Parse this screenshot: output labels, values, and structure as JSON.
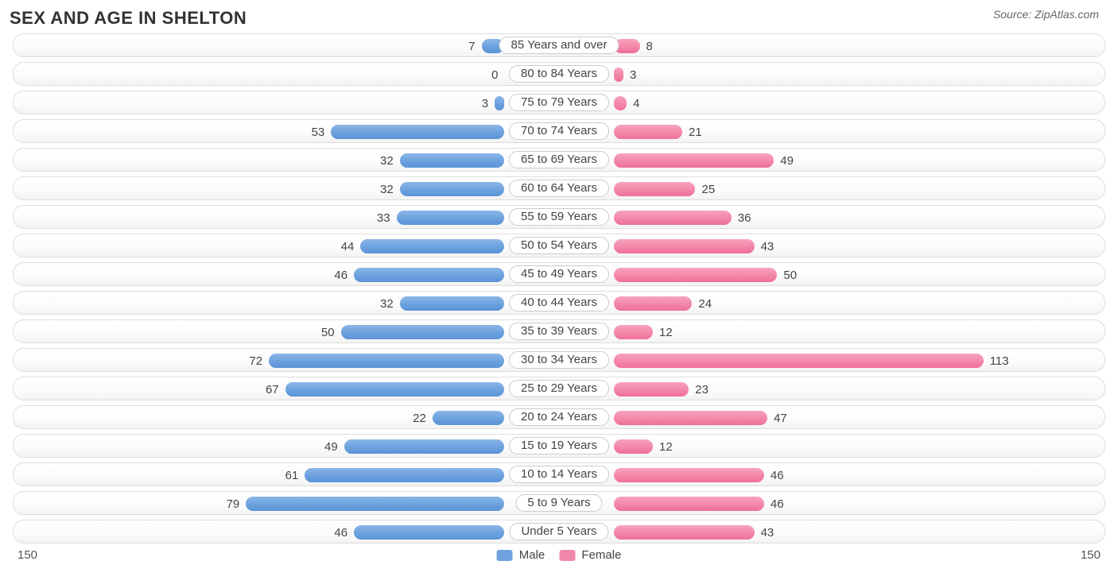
{
  "title": "SEX AND AGE IN SHELTON",
  "source": "Source: ZipAtlas.com",
  "chart": {
    "type": "population-pyramid",
    "axis_max": 150,
    "male_color": "#6fa3df",
    "female_color": "#f389aa",
    "row_border_color": "#dddddd",
    "background_color": "#ffffff",
    "label_fontsize": 15,
    "title_fontsize": 22,
    "legend": {
      "male": "Male",
      "female": "Female"
    },
    "categories": [
      {
        "label": "85 Years and over",
        "male": 7,
        "female": 8
      },
      {
        "label": "80 to 84 Years",
        "male": 0,
        "female": 3
      },
      {
        "label": "75 to 79 Years",
        "male": 3,
        "female": 4
      },
      {
        "label": "70 to 74 Years",
        "male": 53,
        "female": 21
      },
      {
        "label": "65 to 69 Years",
        "male": 32,
        "female": 49
      },
      {
        "label": "60 to 64 Years",
        "male": 32,
        "female": 25
      },
      {
        "label": "55 to 59 Years",
        "male": 33,
        "female": 36
      },
      {
        "label": "50 to 54 Years",
        "male": 44,
        "female": 43
      },
      {
        "label": "45 to 49 Years",
        "male": 46,
        "female": 50
      },
      {
        "label": "40 to 44 Years",
        "male": 32,
        "female": 24
      },
      {
        "label": "35 to 39 Years",
        "male": 50,
        "female": 12
      },
      {
        "label": "30 to 34 Years",
        "male": 72,
        "female": 113
      },
      {
        "label": "25 to 29 Years",
        "male": 67,
        "female": 23
      },
      {
        "label": "20 to 24 Years",
        "male": 22,
        "female": 47
      },
      {
        "label": "15 to 19 Years",
        "male": 49,
        "female": 12
      },
      {
        "label": "10 to 14 Years",
        "male": 61,
        "female": 46
      },
      {
        "label": "5 to 9 Years",
        "male": 79,
        "female": 46
      },
      {
        "label": "Under 5 Years",
        "male": 46,
        "female": 43
      }
    ]
  }
}
